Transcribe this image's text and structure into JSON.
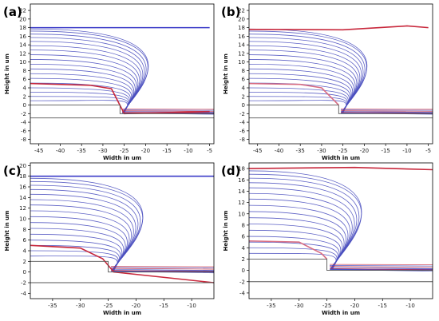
{
  "chart_data": [
    {
      "type": "line",
      "panel_label": "(a)",
      "xlabel": "Width in um",
      "ylabel": "Height in um",
      "xlim": [
        -47,
        -4
      ],
      "ylim": [
        -9,
        23.5
      ],
      "xticks": [
        -45,
        -40,
        -35,
        -30,
        -25,
        -20,
        -15,
        -10,
        -5
      ],
      "yticks": [
        -8,
        -6,
        -4,
        -2,
        0,
        2,
        4,
        6,
        8,
        10,
        12,
        14,
        16,
        18,
        20,
        22
      ],
      "substrate": {
        "step_x": -26,
        "step_top_y": 0,
        "bottom_y": -2,
        "floor_y": -3
      },
      "series": [
        {
          "color": "#3b3bc8",
          "values": [
            [
              -47,
              18
            ],
            [
              -5,
              18
            ]
          ]
        },
        {
          "color": "#c8283c",
          "values": [
            [
              -47,
              5
            ],
            [
              -33,
              4.6
            ],
            [
              -28,
              3.8
            ],
            [
              -25,
              -2
            ],
            [
              -5,
              -1.5
            ]
          ]
        }
      ],
      "streamline_ys": [
        17.7,
        17.2,
        16.5,
        15.7,
        14.8,
        13.8,
        12.8,
        11.7,
        10.6,
        9.5,
        8.4,
        7.3,
        6.2,
        5.1,
        4.0,
        3.0,
        2.0,
        1.0
      ],
      "streamline_color": "#4a4fbf",
      "accent_color": "#c8283c"
    },
    {
      "type": "line",
      "panel_label": "(b)",
      "xlabel": "Width in um",
      "ylabel": "Height in um",
      "xlim": [
        -47,
        -4
      ],
      "ylim": [
        -9,
        23.5
      ],
      "xticks": [
        -45,
        -40,
        -35,
        -30,
        -25,
        -20,
        -15,
        -10,
        -5
      ],
      "yticks": [
        -8,
        -6,
        -4,
        -2,
        0,
        2,
        4,
        6,
        8,
        10,
        12,
        14,
        16,
        18,
        20,
        22
      ],
      "substrate": {
        "step_x": -26,
        "step_top_y": 0,
        "bottom_y": -2,
        "floor_y": -3
      },
      "series": [
        {
          "color": "#c8283c",
          "values": [
            [
              -47,
              17.6
            ],
            [
              -25,
              17.5
            ],
            [
              -10,
              18.4
            ],
            [
              -5,
              18
            ]
          ]
        },
        {
          "color": "#d86c82",
          "values": [
            [
              -47,
              5
            ],
            [
              -35,
              4.8
            ],
            [
              -30,
              4
            ],
            [
              -26,
              0
            ]
          ]
        }
      ],
      "streamline_ys": [
        17.7,
        17.2,
        16.5,
        15.7,
        14.8,
        13.8,
        12.8,
        11.7,
        10.6,
        9.5,
        8.4,
        7.3,
        6.2,
        5.1,
        4.0,
        3.0,
        2.0,
        1.0
      ],
      "streamline_color": "#4a4fbf",
      "accent_color": "#c8283c"
    },
    {
      "type": "line",
      "panel_label": "(c)",
      "xlabel": "Width in um",
      "ylabel": "Height in um",
      "xlim": [
        -39,
        -6
      ],
      "ylim": [
        -5,
        20.5
      ],
      "xticks": [
        -35,
        -30,
        -25,
        -20,
        -15,
        -10
      ],
      "yticks": [
        -4,
        -2,
        0,
        2,
        4,
        6,
        8,
        10,
        12,
        14,
        16,
        18,
        20
      ],
      "substrate": {
        "step_x": -25,
        "step_top_y": 2,
        "bottom_y": 0,
        "floor_y": -2
      },
      "series": [
        {
          "color": "#3b3bc8",
          "values": [
            [
              -39,
              18
            ],
            [
              -6,
              18
            ]
          ]
        },
        {
          "color": "#c8283c",
          "values": [
            [
              -39,
              5
            ],
            [
              -30,
              4.5
            ],
            [
              -26,
              2.5
            ],
            [
              -24,
              0
            ],
            [
              -6,
              -2
            ]
          ]
        }
      ],
      "streamline_ys": [
        17.6,
        17.0,
        16.3,
        15.5,
        14.6,
        13.6,
        12.6,
        11.5,
        10.4,
        9.3,
        8.2,
        7.1,
        6.0,
        5.0,
        4.0,
        3.0
      ],
      "streamline_color": "#4a4fbf",
      "accent_color": "#c8283c"
    },
    {
      "type": "line",
      "panel_label": "(d)",
      "xlabel": "Width in um",
      "ylabel": "Height in um",
      "xlim": [
        -39,
        -6
      ],
      "ylim": [
        -5,
        19
      ],
      "xticks": [
        -35,
        -30,
        -25,
        -20,
        -15,
        -10
      ],
      "yticks": [
        -4,
        -2,
        0,
        2,
        4,
        6,
        8,
        10,
        12,
        14,
        16,
        18
      ],
      "substrate": {
        "step_x": -25,
        "step_top_y": 2,
        "bottom_y": 0,
        "floor_y": -2
      },
      "series": [
        {
          "color": "#c8283c",
          "values": [
            [
              -39,
              18
            ],
            [
              -20,
              18.2
            ],
            [
              -6,
              17.8
            ]
          ]
        },
        {
          "color": "#d86c82",
          "values": [
            [
              -39,
              5.2
            ],
            [
              -30,
              5
            ],
            [
              -26,
              3
            ],
            [
              -25,
              2
            ]
          ]
        }
      ],
      "streamline_ys": [
        17.6,
        17.0,
        16.3,
        15.5,
        14.6,
        13.6,
        12.6,
        11.5,
        10.4,
        9.3,
        8.2,
        7.1,
        6.0,
        5.0,
        4.0,
        3.0
      ],
      "streamline_color": "#4a4fbf",
      "accent_color": "#c8283c"
    }
  ]
}
